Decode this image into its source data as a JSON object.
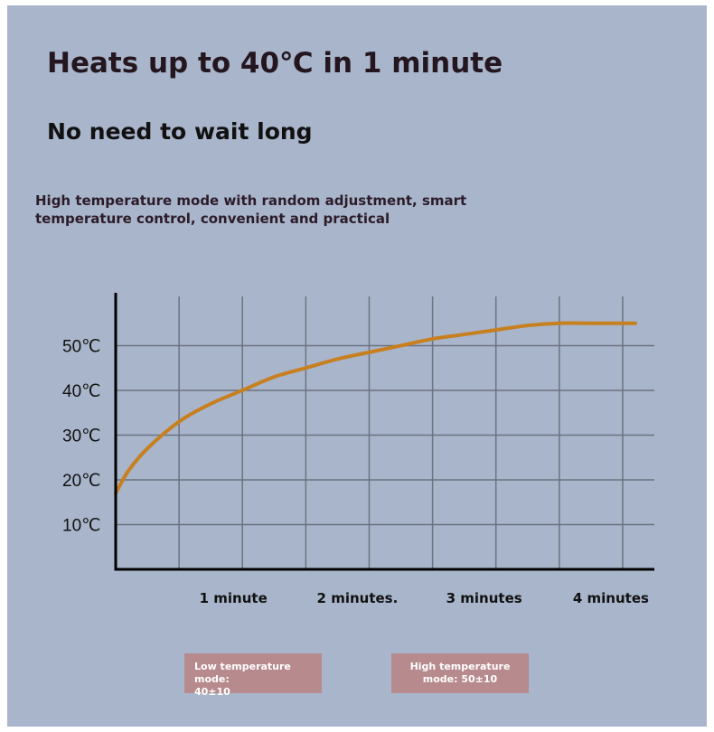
{
  "header": {
    "title": "Heats up to 40℃ in 1 minute",
    "subtitle": "No need to wait long",
    "description": "High temperature mode with random adjustment, smart temperature control, convenient and practical"
  },
  "modes": {
    "low": {
      "label": "Low temperature mode:",
      "value": "40±10"
    },
    "high": {
      "label": "High temperature",
      "value": "mode: 50±10"
    }
  },
  "colors": {
    "background": "#a9b5ca",
    "curve": "#c77f1f",
    "grid": "#6b7380",
    "axis": "#000000",
    "mode_box": "#b78a8e"
  },
  "chart_data": {
    "type": "line",
    "title": "",
    "xlabel": "",
    "ylabel": "",
    "x_ticks": [
      {
        "value": 1,
        "label": "1 minute"
      },
      {
        "value": 2,
        "label": "2 minutes."
      },
      {
        "value": 3,
        "label": "3 minutes"
      },
      {
        "value": 4,
        "label": "4 minutes"
      }
    ],
    "y_ticks": [
      {
        "value": 10,
        "label": "10℃"
      },
      {
        "value": 20,
        "label": "20℃"
      },
      {
        "value": 30,
        "label": "30℃"
      },
      {
        "value": 40,
        "label": "40℃"
      },
      {
        "value": 50,
        "label": "50℃"
      }
    ],
    "xlim": [
      0,
      4.15
    ],
    "ylim": [
      0,
      61
    ],
    "grid": true,
    "series": [
      {
        "x": [
          0,
          0.1,
          0.25,
          0.5,
          0.75,
          1,
          1.25,
          1.5,
          1.75,
          2,
          2.25,
          2.5,
          2.75,
          3,
          3.25,
          3.5,
          3.75,
          4,
          4.1
        ],
        "y": [
          17,
          22,
          27,
          33,
          37,
          40,
          43,
          45,
          47,
          48.5,
          50,
          51.5,
          52.5,
          53.5,
          54.5,
          55,
          55,
          55,
          55
        ]
      }
    ]
  }
}
